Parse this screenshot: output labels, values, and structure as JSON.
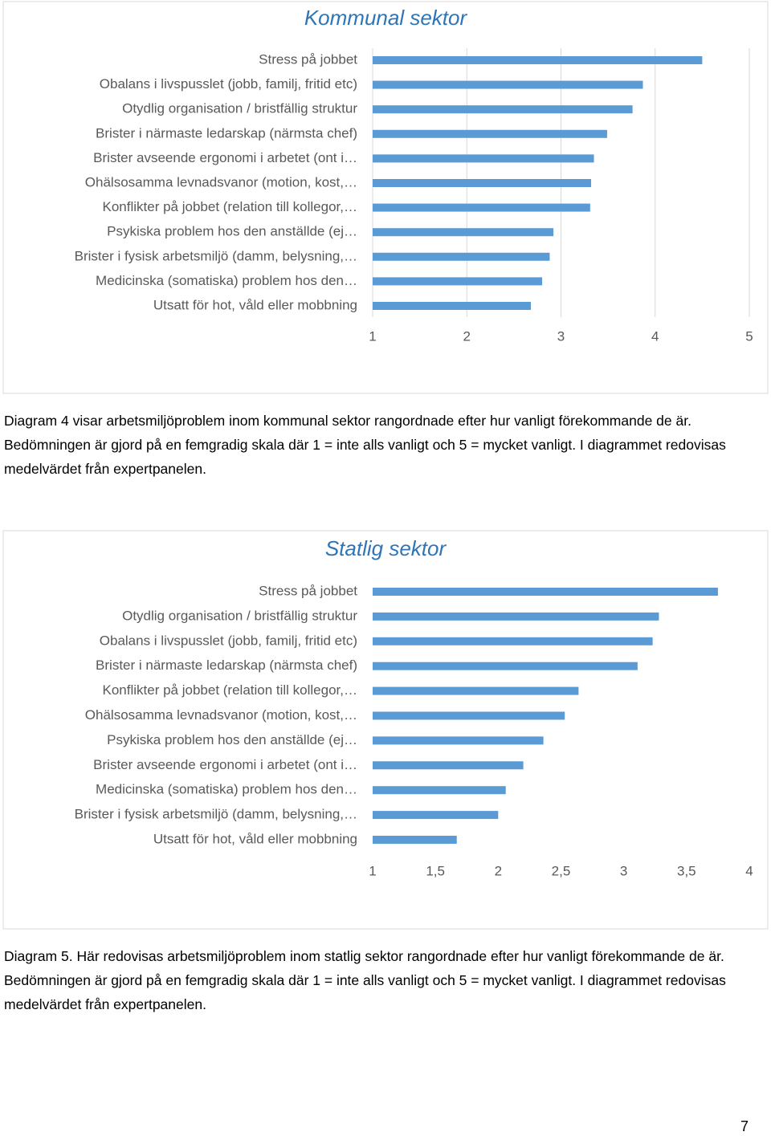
{
  "chart_data": [
    {
      "type": "hbar",
      "title": "Kommunal sektor",
      "categories": [
        "Stress på jobbet",
        "Obalans i livspusslet (jobb, familj, fritid etc)",
        "Otydlig organisation / bristfällig struktur",
        "Brister i närmaste ledarskap (närmsta chef)",
        "Brister avseende ergonomi i arbetet (ont i…",
        "Ohälsosamma levnadsvanor (motion, kost,…",
        "Konflikter på jobbet (relation till kollegor,…",
        "Psykiska problem hos den anställde (ej…",
        "Brister i fysisk arbetsmiljö (damm, belysning,…",
        "Medicinska (somatiska) problem hos den…",
        "Utsatt för hot, våld eller mobbning"
      ],
      "values": [
        4.5,
        3.87,
        3.76,
        3.49,
        3.35,
        3.32,
        3.31,
        2.92,
        2.88,
        2.8,
        2.68
      ],
      "color": "#5b9bd5",
      "xlim": [
        1,
        5
      ],
      "xticks": [
        1,
        2,
        3,
        4,
        5
      ],
      "grid": true
    },
    {
      "type": "hbar",
      "title": "Statlig sektor",
      "categories": [
        "Stress på jobbet",
        "Otydlig organisation / bristfällig struktur",
        "Obalans i livspusslet (jobb, familj, fritid etc)",
        "Brister i närmaste ledarskap (närmsta chef)",
        "Konflikter på jobbet (relation till kollegor,…",
        "Ohälsosamma levnadsvanor (motion, kost,…",
        "Psykiska problem hos den anställde (ej…",
        "Brister avseende ergonomi i arbetet (ont i…",
        "Medicinska (somatiska) problem hos den…",
        "Brister i fysisk arbetsmiljö (damm, belysning,…",
        "Utsatt för hot, våld eller mobbning"
      ],
      "values": [
        3.75,
        3.28,
        3.23,
        3.11,
        2.64,
        2.53,
        2.36,
        2.2,
        2.06,
        2.0,
        1.67
      ],
      "color": "#5b9bd5",
      "xlim": [
        1,
        4
      ],
      "xticks": [
        1,
        {
          "value": 1.5,
          "label": "1,5"
        },
        2,
        {
          "value": 2.5,
          "label": "2,5"
        },
        3,
        {
          "value": 3.5,
          "label": "3,5"
        },
        4
      ],
      "grid": false
    }
  ],
  "captions": [
    "Diagram 4 visar arbetsmiljöproblem inom kommunal sektor rangordnade efter hur vanligt förekommande de är. Bedömningen är gjord på en femgradig skala där 1 = inte alls vanligt och 5 = mycket vanligt. I diagrammet redovisas medelvärdet från expertpanelen.",
    "Diagram 5. Här redovisas arbetsmiljöproblem inom statlig sektor rangordnade efter hur vanligt förekommande de är. Bedömningen är gjord på en femgradig skala där 1 = inte alls vanligt och 5 = mycket vanligt. I diagrammet redovisas medelvärdet från expertpanelen."
  ],
  "page_number": "7"
}
